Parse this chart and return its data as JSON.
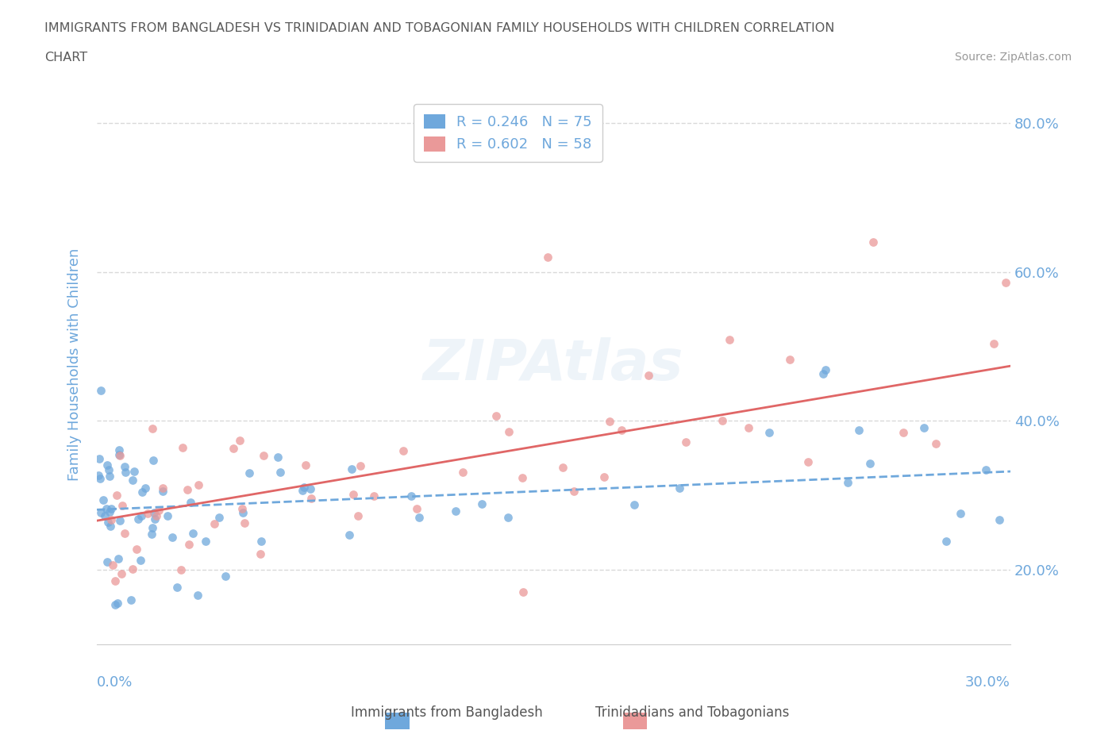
{
  "title_line1": "IMMIGRANTS FROM BANGLADESH VS TRINIDADIAN AND TOBAGONIAN FAMILY HOUSEHOLDS WITH CHILDREN CORRELATION",
  "title_line2": "CHART",
  "source_text": "Source: ZipAtlas.com",
  "ylabel": "Family Households with Children",
  "ytick_labels": [
    "20.0%",
    "40.0%",
    "60.0%",
    "80.0%"
  ],
  "ytick_values": [
    0.2,
    0.4,
    0.6,
    0.8
  ],
  "xlim": [
    0.0,
    0.3
  ],
  "ylim": [
    0.1,
    0.85
  ],
  "legend_r1": "R = 0.246",
  "legend_n1": "N = 75",
  "legend_r2": "R = 0.602",
  "legend_n2": "N = 58",
  "color_blue": "#6fa8dc",
  "color_pink": "#ea9999",
  "color_trend_blue": "#6fa8dc",
  "color_trend_pink": "#e06666",
  "color_axis_label": "#6fa8dc",
  "color_title": "#595959",
  "color_gridline": "#d9d9d9",
  "watermark_text": "ZIPAtlas"
}
